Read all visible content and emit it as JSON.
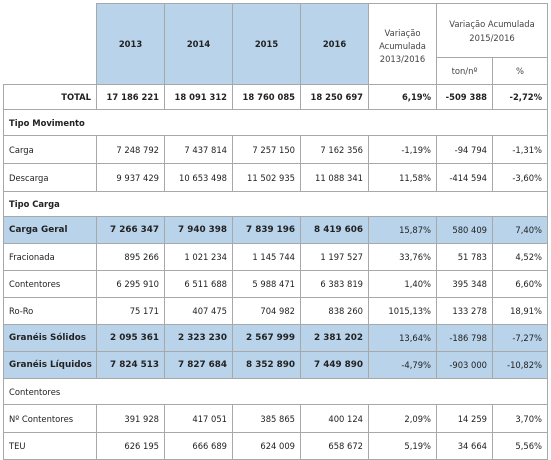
{
  "header": {
    "years": [
      "2013",
      "2014",
      "2015",
      "2016"
    ],
    "var_1316_label_line1": "Variação",
    "var_1316_label_line2": "Acumulada",
    "var_1316_label_line3": "2013/2016",
    "var_1516_label_line1": "Variação Acumulada",
    "var_1516_label_line2": "2015/2016",
    "unit_ton": "ton/nº",
    "unit_pct": "%"
  },
  "total": {
    "label": "TOTAL",
    "values": [
      "17 186 221",
      "18 091 312",
      "18 760 085",
      "18 250 697",
      "6,19%",
      "-509 388",
      "-2,72%"
    ]
  },
  "section_movimento": {
    "label": "Tipo Movimento"
  },
  "carga": {
    "label": "Carga",
    "values": [
      "7 248 792",
      "7 437 814",
      "7 257 150",
      "7 162 356",
      "-1,19%",
      "-94 794",
      "-1,31%"
    ]
  },
  "descarga": {
    "label": "Descarga",
    "values": [
      "9 937 429",
      "10 653 498",
      "11 502 935",
      "11 088 341",
      "11,58%",
      "-414 594",
      "-3,60%"
    ]
  },
  "section_carga": {
    "label": "Tipo Carga"
  },
  "carga_geral": {
    "label": "Carga Geral",
    "values": [
      "7 266 347",
      "7 940 398",
      "7 839 196",
      "8 419 606",
      "15,87%",
      "580 409",
      "7,40%"
    ]
  },
  "fracionada": {
    "label": "Fracionada",
    "values": [
      "895 266",
      "1 021 234",
      "1 145 744",
      "1 197 527",
      "33,76%",
      "51 783",
      "4,52%"
    ]
  },
  "contentores": {
    "label": "Contentores",
    "values": [
      "6 295 910",
      "6 511 688",
      "5 988 471",
      "6 383 819",
      "1,40%",
      "395 348",
      "6,60%"
    ]
  },
  "roro": {
    "label": "Ro-Ro",
    "values": [
      "75 171",
      "407 475",
      "704 982",
      "838 260",
      "1015,13%",
      "133 278",
      "18,91%"
    ]
  },
  "graneis_solidos": {
    "label": "Granéis Sólidos",
    "values": [
      "2 095 361",
      "2 323 230",
      "2 567 999",
      "2 381 202",
      "13,64%",
      "-186 798",
      "-7,27%"
    ]
  },
  "graneis_liquidos": {
    "label": "Granéis Líquidos",
    "values": [
      "7 824 513",
      "7 827 684",
      "8 352 890",
      "7 449 890",
      "-4,79%",
      "-903 000",
      "-10,82%"
    ]
  },
  "section_contentores": {
    "label": "Contentores"
  },
  "n_contentores": {
    "label": "Nº Contentores",
    "values": [
      "391 928",
      "417 051",
      "385 865",
      "400 124",
      "2,09%",
      "14 259",
      "3,70%"
    ]
  },
  "teu": {
    "label": "TEU",
    "values": [
      "626 195",
      "666 689",
      "624 009",
      "658 672",
      "5,19%",
      "34 664",
      "5,56%"
    ]
  }
}
